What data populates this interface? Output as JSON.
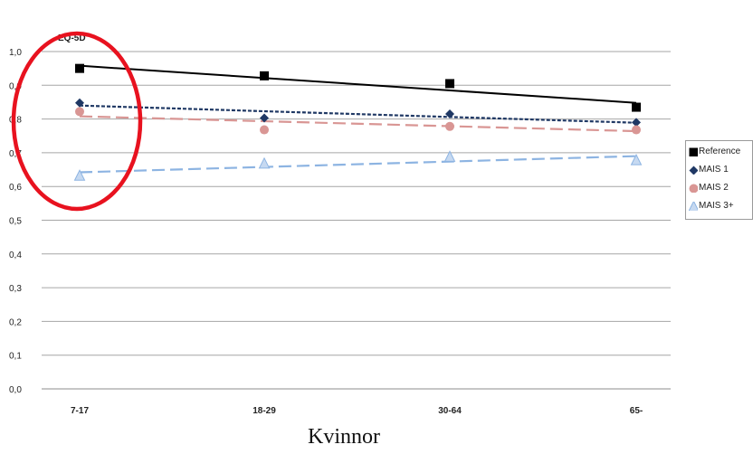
{
  "chart_data": {
    "type": "line",
    "ylabel": "EQ-5D",
    "xlabel": "Kvinnor",
    "categories": [
      "7-17",
      "18-29",
      "30-64",
      "65-"
    ],
    "ylim": [
      0,
      1.0
    ],
    "y_ticks": [
      "0,0",
      "0,1",
      "0,2",
      "0,3",
      "0,4",
      "0,5",
      "0,6",
      "0,7",
      "0,8",
      "0,9",
      "1,0"
    ],
    "grid": "horizontal",
    "legend_position": "right",
    "series": [
      {
        "name": "Reference",
        "values": [
          0.95,
          0.928,
          0.905,
          0.835
        ],
        "trend": [
          0.958,
          0.924,
          0.886,
          0.848
        ],
        "color": "#000000",
        "marker": "square",
        "line_style": "solid"
      },
      {
        "name": "MAIS 1",
        "values": [
          0.848,
          0.803,
          0.815,
          0.79
        ],
        "trend": [
          0.84,
          0.823,
          0.806,
          0.789
        ],
        "color": "#1f3864",
        "marker": "diamond",
        "line_style": "dotted"
      },
      {
        "name": "MAIS 2",
        "values": [
          0.822,
          0.768,
          0.778,
          0.768
        ],
        "trend": [
          0.808,
          0.795,
          0.779,
          0.764
        ],
        "color": "#d99694",
        "marker": "circle",
        "line_style": "dashed"
      },
      {
        "name": "MAIS 3+",
        "values": [
          0.632,
          0.668,
          0.688,
          0.678
        ],
        "trend": [
          0.642,
          0.659,
          0.675,
          0.69
        ],
        "color": "#8db4e2",
        "marker": "triangle",
        "line_style": "dashed"
      }
    ],
    "annotation": {
      "shape": "ellipse",
      "color": "#e8121f",
      "note": "highlight on 7-17"
    }
  }
}
